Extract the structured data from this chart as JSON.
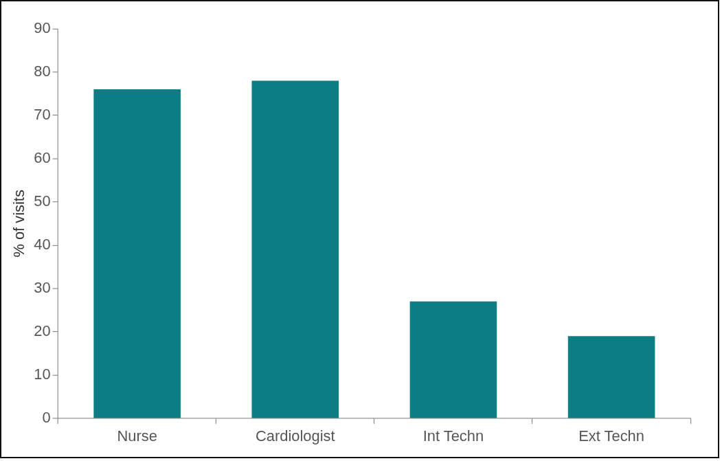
{
  "chart_data": {
    "type": "bar",
    "ylabel": "% of visits",
    "categories": [
      "Nurse",
      "Cardiologist",
      "Int Techn",
      "Ext Techn"
    ],
    "values": [
      76,
      78,
      27,
      19
    ],
    "color": "#0b7d83",
    "ylim": [
      0,
      90
    ],
    "yticks": [
      0,
      10,
      20,
      30,
      40,
      50,
      60,
      70,
      80,
      90
    ],
    "grid": false,
    "legend": false
  }
}
